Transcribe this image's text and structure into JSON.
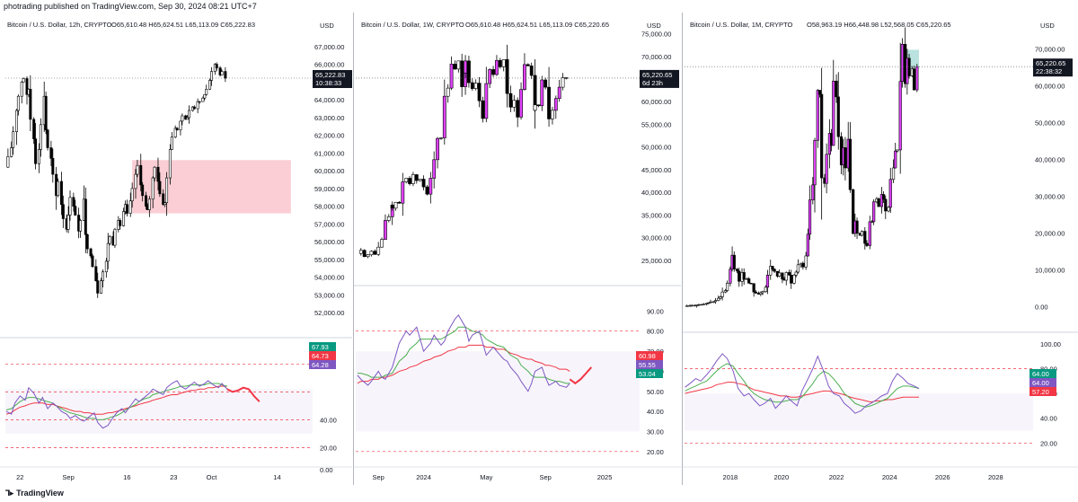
{
  "header": {
    "published": "photrading published on TradingView.com, Sep 30, 2024 08:21 UTC+7"
  },
  "footer": {
    "brand": "TradingView"
  },
  "colors": {
    "bull": "#ffffff",
    "bear": "#000000",
    "pinkBar": "#e040fb",
    "zone": "#f9c6cc",
    "teal": "#b2dfdb",
    "rsi": "#7e57c2",
    "ma1": "#4caf50",
    "ma2": "#f23645",
    "forecast": "#f23645",
    "dashed": "#f23645"
  },
  "chart_data": [
    {
      "type": "candlestick",
      "symbol": "Bitcoin / U.S. Dollar, 12h, CRYPTO",
      "ohlc_header": {
        "o": "O65,610.48",
        "h": "H65,624.51",
        "l": "L65,113.09",
        "c": "C65,222.83"
      },
      "currency": "USD",
      "price_axis": {
        "ticks": [
          52000,
          53000,
          54000,
          55000,
          56000,
          57000,
          58000,
          59000,
          60000,
          61000,
          62000,
          63000,
          64000,
          65000,
          66000,
          67000
        ],
        "range": [
          51300,
          67400
        ]
      },
      "last_price": {
        "value": "65,222.83",
        "sub": "10:38:33",
        "price": 65222.83
      },
      "x_ticks": [
        {
          "label": "22",
          "i": 8
        },
        {
          "label": "Sep",
          "i": 36
        },
        {
          "label": "16",
          "i": 70
        },
        {
          "label": "23",
          "i": 97
        },
        {
          "label": "Oct",
          "i": 119
        },
        {
          "label": "14",
          "i": 157
        }
      ],
      "n_slots": 176,
      "zone": {
        "from": 73,
        "to": 165,
        "low": 57600,
        "high": 60600,
        "color": "zone"
      },
      "path": [
        60200,
        60800,
        61300,
        62200,
        63400,
        64200,
        65000,
        65200,
        64300,
        64600,
        62900,
        61800,
        60400,
        61200,
        62600,
        64200,
        62300,
        61300,
        60700,
        59800,
        58600,
        59400,
        58100,
        57300,
        56700,
        57500,
        58500,
        58000,
        57500,
        56600,
        57200,
        58400,
        56400,
        55600,
        55200,
        54600,
        53800,
        53100,
        53800,
        54300,
        54900,
        55900,
        56300,
        55800,
        56700,
        57200,
        56900,
        57700,
        58100,
        57600,
        58300,
        59000,
        59800,
        60300,
        59200,
        58600,
        58000,
        57800,
        58400,
        59600,
        60200,
        59400,
        58700,
        58100,
        58200,
        59600,
        61200,
        61900,
        62400,
        62300,
        62800,
        63100,
        62900,
        63000,
        63400,
        63600,
        63500,
        63900,
        63900,
        64100,
        64300,
        64600,
        65100,
        65600,
        66000,
        65800,
        65400,
        65600,
        65222
      ],
      "price_pane": {
        "top": 30,
        "bottom": 348
      },
      "rsi": {
        "levels": [
          20,
          40,
          60,
          80
        ],
        "range": [
          10,
          95
        ],
        "pane": {
          "top": 368,
          "bottom": 500
        },
        "badges": [
          {
            "value": "67.93",
            "color": "#089981"
          },
          {
            "value": "64.73",
            "color": "#f23645"
          },
          {
            "value": "64.28",
            "color": "#7e57c2"
          }
        ],
        "ticks": [
          "20.00",
          "40.00"
        ],
        "rsi_values": [
          46,
          44,
          52,
          57,
          54,
          63,
          59,
          52,
          56,
          48,
          52,
          50,
          46,
          44,
          41,
          43,
          40,
          39,
          42,
          45,
          38,
          34,
          36,
          40,
          45,
          48,
          45,
          50,
          55,
          53,
          56,
          59,
          62,
          60,
          58,
          63,
          66,
          68,
          64,
          62,
          65,
          67,
          64,
          66,
          68,
          65,
          63,
          66,
          62
        ],
        "ma1_values": [
          47,
          48,
          50,
          53,
          55,
          56,
          56,
          55,
          54,
          53,
          52,
          50,
          48,
          46,
          45,
          44,
          43,
          42,
          41,
          41,
          40,
          40,
          41,
          42,
          43,
          45,
          47,
          49,
          51,
          53,
          55,
          56,
          58,
          59,
          60,
          61,
          62,
          63,
          64,
          64,
          65,
          65,
          65,
          65,
          66,
          66,
          66,
          65,
          64
        ],
        "ma2_values": [
          44,
          45,
          47,
          49,
          50,
          51,
          52,
          52,
          52,
          51,
          51,
          50,
          49,
          48,
          47,
          46,
          46,
          45,
          45,
          44,
          44,
          44,
          45,
          45,
          46,
          47,
          48,
          49,
          50,
          51,
          52,
          53,
          54,
          55,
          56,
          57,
          58,
          58,
          59,
          60,
          61,
          61,
          62,
          62,
          63,
          63,
          64,
          64,
          64
        ],
        "forecast": [
          [
            0,
            62
          ],
          [
            1,
            60
          ],
          [
            2,
            61
          ],
          [
            3,
            63
          ],
          [
            4,
            62
          ],
          [
            5,
            57
          ],
          [
            6,
            53
          ]
        ]
      }
    },
    {
      "type": "candlestick",
      "symbol": "Bitcoin / U.S. Dollar, 1W, CRYPTO",
      "ohlc_header": {
        "o": "O65,610.48",
        "h": "H65,624.51",
        "l": "L65,113.09",
        "c": "C65,220.65"
      },
      "currency": "USD",
      "price_axis": {
        "ticks": [
          25000,
          30000,
          35000,
          40000,
          45000,
          50000,
          55000,
          60000,
          65000,
          70000,
          75000
        ],
        "range": [
          21000,
          76500
        ]
      },
      "last_price": {
        "value": "65,220.65",
        "sub": "6d 23h",
        "price": 65220.65
      },
      "x_ticks": [
        {
          "label": "Sep",
          "i": 6
        },
        {
          "label": "2024",
          "i": 19
        },
        {
          "label": "May",
          "i": 37
        },
        {
          "label": "Sep",
          "i": 54
        },
        {
          "label": "2025",
          "i": 71
        }
      ],
      "n_slots": 80,
      "path": [
        26500,
        27200,
        25800,
        26200,
        27000,
        26300,
        27900,
        29600,
        33800,
        34600,
        37200,
        36500,
        37800,
        37600,
        42300,
        43100,
        41900,
        43900,
        42600,
        42900,
        41200,
        39600,
        43100,
        47200,
        51900,
        52000,
        61200,
        63000,
        68300,
        67200,
        69000,
        63300,
        66300,
        69000,
        64200,
        62900,
        64100,
        60200,
        56300,
        64000,
        67100,
        66000,
        69100,
        67700,
        69300,
        61800,
        58800,
        60300,
        56600,
        62700,
        68200,
        67900,
        65800,
        58100,
        59300,
        59100,
        64800,
        63200,
        56200,
        58100,
        60700,
        63200,
        65300,
        65220
      ],
      "price_pane": {
        "top": 16,
        "bottom": 296
      },
      "rsi": {
        "levels": [
          20,
          80
        ],
        "range": [
          15,
          100
        ],
        "pane": {
          "top": 310,
          "bottom": 500
        },
        "badges": [
          {
            "value": "60.98",
            "color": "#f23645"
          },
          {
            "value": "55.55",
            "color": "#7e57c2"
          },
          {
            "value": "53.04",
            "color": "#089981"
          }
        ],
        "ticks": [
          "20.00",
          "30.00",
          "40.00",
          "50.00",
          "60.00",
          "70.00",
          "80.00",
          "90.00"
        ],
        "rsi_values": [
          58,
          56,
          53,
          55,
          60,
          57,
          56,
          62,
          68,
          74,
          80,
          78,
          82,
          76,
          70,
          74,
          78,
          73,
          75,
          80,
          86,
          88,
          82,
          75,
          78,
          80,
          74,
          68,
          72,
          70,
          66,
          65,
          62,
          58,
          55,
          50,
          54,
          60,
          62,
          57,
          53,
          55,
          53,
          52,
          54
        ],
        "ma1_values": [
          59,
          59,
          58,
          57,
          57,
          57,
          58,
          59,
          62,
          65,
          68,
          71,
          74,
          76,
          76,
          76,
          76,
          76,
          77,
          78,
          80,
          82,
          82,
          81,
          80,
          79,
          78,
          76,
          74,
          73,
          72,
          70,
          68,
          66,
          63,
          60,
          58,
          57,
          57,
          57,
          56,
          55,
          55,
          54,
          54
        ],
        "ma2_values": [
          54,
          55,
          55,
          56,
          56,
          57,
          57,
          58,
          59,
          60,
          61,
          62,
          63,
          64,
          65,
          66,
          67,
          68,
          69,
          70,
          71,
          72,
          72,
          73,
          73,
          73,
          73,
          72,
          72,
          71,
          71,
          70,
          69,
          68,
          67,
          66,
          66,
          65,
          64,
          63,
          63,
          62,
          61,
          61,
          60
        ],
        "forecast": [
          [
            0,
            56
          ],
          [
            1,
            54
          ],
          [
            2,
            56
          ],
          [
            3,
            59
          ],
          [
            4,
            62
          ]
        ]
      }
    },
    {
      "type": "candlestick",
      "symbol": "Bitcoin / U.S. Dollar, 1M, CRYPTO",
      "ohlc_header": {
        "o": "O58,963.19",
        "h": "H66,448.98",
        "l": "L52,568.05",
        "c": "C65,220.65"
      },
      "currency": "USD",
      "price_axis": {
        "ticks": [
          0,
          10000,
          20000,
          30000,
          40000,
          50000,
          60000,
          70000
        ],
        "range": [
          -4500,
          76000
        ]
      },
      "last_price": {
        "value": "65,220.65",
        "sub": "22:38:32",
        "price": 65220.65
      },
      "x_ticks": [
        {
          "label": "2018",
          "i": 46
        },
        {
          "label": "2020",
          "i": 98
        },
        {
          "label": "2022",
          "i": 154
        },
        {
          "label": "2024",
          "i": 208
        },
        {
          "label": "2026",
          "i": 262
        },
        {
          "label": "2028",
          "i": 316
        }
      ],
      "n_slots": 350,
      "zone": {
        "from": 226,
        "to": 238,
        "low": 64800,
        "high": 69800,
        "color": "teal"
      },
      "path": [
        200,
        250,
        300,
        350,
        420,
        480,
        580,
        620,
        700,
        900,
        1100,
        1300,
        1400,
        1700,
        2300,
        2700,
        4000,
        4400,
        6400,
        10200,
        14000,
        10200,
        9700,
        6900,
        9300,
        7400,
        7600,
        6400,
        6300,
        4000,
        3700,
        3400,
        3800,
        4100,
        5300,
        8600,
        11000,
        10200,
        9600,
        8300,
        9200,
        7500,
        7200,
        9300,
        8600,
        6400,
        8600,
        9400,
        11400,
        11800,
        10800,
        13800,
        19700,
        29000,
        33100,
        45200,
        58800,
        57700,
        35000,
        33500,
        41400,
        47100,
        43800,
        61300,
        57000,
        46200,
        38500,
        43200,
        37700,
        45500,
        31800,
        19900,
        23300,
        20000,
        19400,
        20500,
        17200,
        16600,
        23100,
        23100,
        28500,
        29300,
        27200,
        30500,
        29200,
        26000,
        27000,
        34600,
        37700,
        42300,
        42600,
        61200,
        71300,
        60600,
        67500,
        62700,
        64600,
        58900,
        65220
      ],
      "price_pane": {
        "top": 16,
        "bottom": 346
      },
      "rsi": {
        "levels": [
          20,
          80
        ],
        "range": [
          5,
          105
        ],
        "pane": {
          "top": 362,
          "bottom": 500
        },
        "badges": [
          {
            "value": "64.00",
            "color": "#089981"
          },
          {
            "value": "64.00",
            "color": "#7e57c2"
          },
          {
            "value": "57.20",
            "color": "#f23645"
          }
        ],
        "ticks": [
          "20.00",
          "40.00",
          "60.00",
          "80.00",
          "100.00"
        ],
        "rsi_values": [
          65,
          68,
          72,
          70,
          75,
          80,
          86,
          92,
          88,
          78,
          64,
          58,
          60,
          55,
          50,
          52,
          56,
          48,
          52,
          58,
          54,
          50,
          62,
          70,
          80,
          90,
          78,
          66,
          60,
          58,
          52,
          48,
          44,
          46,
          50,
          52,
          55,
          58,
          60,
          70,
          76,
          72,
          68,
          66,
          64
        ],
        "ma1_values": [
          62,
          64,
          66,
          68,
          70,
          74,
          78,
          82,
          84,
          82,
          76,
          70,
          64,
          60,
          57,
          55,
          54,
          53,
          53,
          54,
          55,
          55,
          57,
          62,
          68,
          74,
          78,
          76,
          72,
          66,
          60,
          56,
          52,
          50,
          49,
          50,
          52,
          54,
          56,
          60,
          64,
          66,
          66,
          65,
          64
        ],
        "ma2_values": [
          60,
          61,
          62,
          63,
          64,
          65,
          67,
          68,
          69,
          69,
          68,
          67,
          65,
          63,
          62,
          61,
          60,
          59,
          58,
          58,
          57,
          57,
          58,
          59,
          60,
          61,
          62,
          62,
          61,
          60,
          59,
          57,
          56,
          55,
          54,
          53,
          54,
          54,
          55,
          55,
          56,
          57,
          57,
          57,
          57
        ],
        "forecast": []
      }
    }
  ]
}
